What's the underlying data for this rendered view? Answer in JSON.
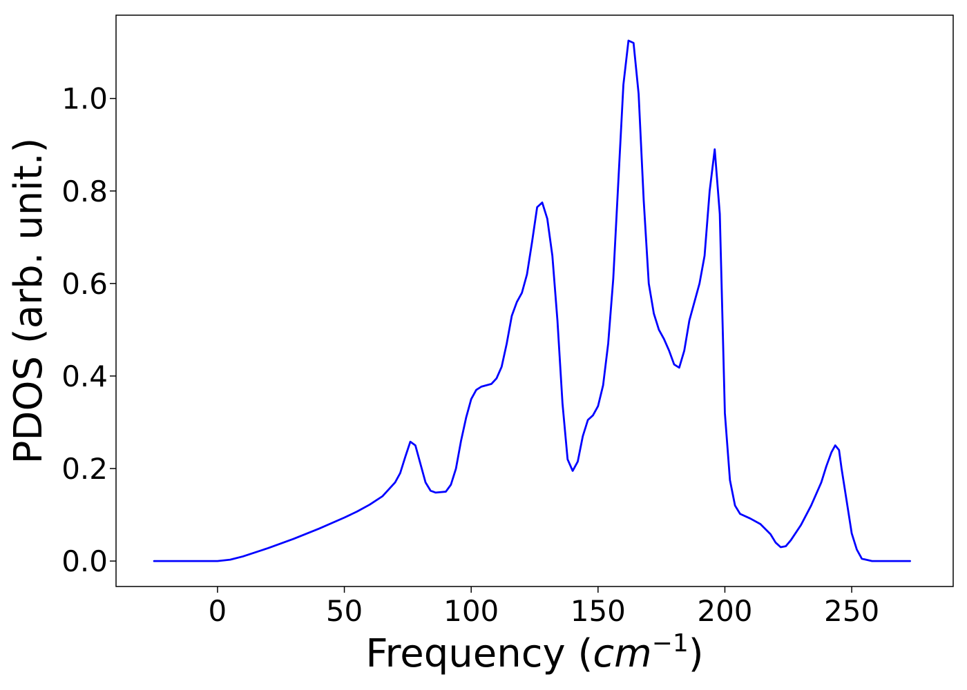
{
  "chart_data": {
    "type": "line",
    "title": "",
    "xlabel": "Frequency",
    "xlabel_unit": "cm",
    "xlabel_unit_exponent": "−1",
    "ylabel": "PDOS (arb. unit.)",
    "xlim": [
      -40,
      290
    ],
    "ylim": [
      -0.055,
      1.18
    ],
    "xticks": [
      0,
      50,
      100,
      150,
      200,
      250
    ],
    "yticks": [
      0.0,
      0.2,
      0.4,
      0.6,
      0.8,
      1.0
    ],
    "xtick_labels": [
      "0",
      "50",
      "100",
      "150",
      "200",
      "250"
    ],
    "ytick_labels": [
      "0.0",
      "0.2",
      "0.4",
      "0.6",
      "0.8",
      "1.0"
    ],
    "grid": false,
    "line_color": "#0000ff",
    "series": [
      {
        "x": [
          -25,
          -10,
          0,
          5,
          10,
          20,
          30,
          40,
          50,
          55,
          60,
          65,
          70,
          72,
          74,
          76,
          78,
          80,
          82,
          84,
          86,
          90,
          92,
          94,
          96,
          98,
          100,
          102,
          104,
          106,
          108,
          110,
          112,
          114,
          116,
          118,
          120,
          122,
          124,
          126,
          128,
          130,
          132,
          134,
          136,
          138,
          140,
          142,
          144,
          146,
          148,
          150,
          152,
          154,
          156,
          158,
          160,
          162,
          164,
          166,
          168,
          170,
          172,
          174,
          176,
          178,
          180,
          182,
          184,
          186,
          188,
          190,
          192,
          194,
          196,
          198,
          200,
          202,
          204,
          206,
          210,
          214,
          218,
          220,
          222,
          224,
          226,
          230,
          234,
          238,
          240,
          242,
          243.5,
          245,
          246,
          248,
          250,
          252,
          254,
          258,
          265,
          273
        ],
        "y": [
          0.0,
          0.0,
          0.0,
          0.003,
          0.01,
          0.028,
          0.048,
          0.07,
          0.094,
          0.107,
          0.122,
          0.14,
          0.17,
          0.19,
          0.225,
          0.258,
          0.25,
          0.21,
          0.17,
          0.152,
          0.148,
          0.15,
          0.165,
          0.2,
          0.26,
          0.31,
          0.35,
          0.37,
          0.377,
          0.38,
          0.383,
          0.395,
          0.42,
          0.47,
          0.53,
          0.56,
          0.58,
          0.62,
          0.69,
          0.765,
          0.775,
          0.74,
          0.66,
          0.52,
          0.34,
          0.22,
          0.195,
          0.215,
          0.27,
          0.305,
          0.315,
          0.335,
          0.38,
          0.47,
          0.61,
          0.82,
          1.03,
          1.125,
          1.12,
          1.01,
          0.78,
          0.6,
          0.535,
          0.5,
          0.48,
          0.455,
          0.425,
          0.418,
          0.455,
          0.52,
          0.56,
          0.6,
          0.66,
          0.8,
          0.89,
          0.75,
          0.32,
          0.175,
          0.12,
          0.102,
          0.092,
          0.08,
          0.058,
          0.04,
          0.03,
          0.032,
          0.045,
          0.078,
          0.12,
          0.17,
          0.205,
          0.235,
          0.25,
          0.24,
          0.2,
          0.13,
          0.06,
          0.025,
          0.005,
          0.0,
          0.0,
          0.0
        ]
      }
    ]
  }
}
